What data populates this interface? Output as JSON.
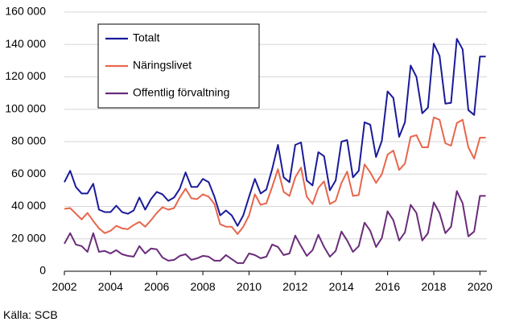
{
  "source": "Källa: SCB",
  "chart_data": {
    "type": "line",
    "title": "",
    "xlabel": "",
    "ylabel": "",
    "xlim": [
      2002,
      2020.3
    ],
    "ylim": [
      0,
      160000
    ],
    "x_ticks": [
      2002,
      2004,
      2006,
      2008,
      2010,
      2012,
      2014,
      2016,
      2018,
      2020
    ],
    "x_tick_labels": [
      "2002",
      "2004",
      "2006",
      "2008",
      "2010",
      "2012",
      "2014",
      "2016",
      "2018",
      "2020"
    ],
    "y_ticks": [
      0,
      20000,
      40000,
      60000,
      80000,
      100000,
      120000,
      140000,
      160000
    ],
    "y_tick_labels": [
      "0",
      "20 000",
      "40 000",
      "60 000",
      "80 000",
      "100 000",
      "120 000",
      "140 000",
      "160 000"
    ],
    "grid": "horizontal",
    "legend_position": "top-left",
    "x": [
      2002.0,
      2002.25,
      2002.5,
      2002.75,
      2003.0,
      2003.25,
      2003.5,
      2003.75,
      2004.0,
      2004.25,
      2004.5,
      2004.75,
      2005.0,
      2005.25,
      2005.5,
      2005.75,
      2006.0,
      2006.25,
      2006.5,
      2006.75,
      2007.0,
      2007.25,
      2007.5,
      2007.75,
      2008.0,
      2008.25,
      2008.5,
      2008.75,
      2009.0,
      2009.25,
      2009.5,
      2009.75,
      2010.0,
      2010.25,
      2010.5,
      2010.75,
      2011.0,
      2011.25,
      2011.5,
      2011.75,
      2012.0,
      2012.25,
      2012.5,
      2012.75,
      2013.0,
      2013.25,
      2013.5,
      2013.75,
      2014.0,
      2014.25,
      2014.5,
      2014.75,
      2015.0,
      2015.25,
      2015.5,
      2015.75,
      2016.0,
      2016.25,
      2016.5,
      2016.75,
      2017.0,
      2017.25,
      2017.5,
      2017.75,
      2018.0,
      2018.25,
      2018.5,
      2018.75,
      2019.0,
      2019.25,
      2019.5,
      2019.75,
      2020.0,
      2020.25
    ],
    "series": [
      {
        "name": "Totalt",
        "color": "#1a1a9a",
        "values": [
          55000,
          62000,
          52000,
          48000,
          48000,
          54000,
          38000,
          36500,
          36500,
          40500,
          36500,
          35500,
          37500,
          45500,
          38000,
          44500,
          49000,
          47500,
          43500,
          45500,
          51000,
          61000,
          52000,
          52000,
          57000,
          55000,
          46000,
          34500,
          37500,
          34500,
          28000,
          34500,
          46000,
          57000,
          48000,
          50500,
          63000,
          78000,
          58000,
          55000,
          78000,
          79500,
          56000,
          53000,
          73500,
          71000,
          50000,
          56000,
          80000,
          81000,
          58000,
          62000,
          92000,
          90500,
          70500,
          80500,
          111000,
          107000,
          83000,
          92000,
          127000,
          120000,
          97500,
          101000,
          140500,
          133000,
          103500,
          104000,
          143500,
          137000,
          99500,
          96500,
          132500,
          132500
        ]
      },
      {
        "name": "Näringslivet",
        "color": "#e8664c",
        "values": [
          38500,
          39000,
          35500,
          32000,
          36000,
          31000,
          26500,
          23500,
          25000,
          28000,
          26500,
          26000,
          28500,
          30500,
          27500,
          31500,
          36000,
          39500,
          38000,
          39000,
          45500,
          51000,
          45000,
          44500,
          47500,
          46000,
          41500,
          29000,
          27500,
          27500,
          23000,
          27500,
          34500,
          47500,
          41000,
          42000,
          52000,
          63000,
          49000,
          46500,
          58000,
          64000,
          46000,
          41500,
          51500,
          55500,
          41500,
          43500,
          54500,
          61500,
          46500,
          47000,
          66000,
          61000,
          54500,
          60000,
          72000,
          74500,
          62500,
          66500,
          83000,
          84000,
          76500,
          76500,
          95000,
          93500,
          79000,
          77500,
          91500,
          93500,
          76500,
          69500,
          82500,
          82500
        ]
      },
      {
        "name": "Offentlig förvaltning",
        "color": "#6a2c7a",
        "values": [
          17000,
          23500,
          16500,
          15500,
          12000,
          23500,
          12000,
          12500,
          11000,
          13000,
          10500,
          9500,
          9000,
          15500,
          11000,
          14000,
          13500,
          8500,
          6500,
          7000,
          9500,
          10500,
          7000,
          8000,
          9500,
          9000,
          6500,
          6500,
          10000,
          7500,
          5000,
          5000,
          11000,
          10000,
          8000,
          9000,
          16500,
          15000,
          10000,
          11000,
          22000,
          15500,
          9500,
          13000,
          22500,
          15000,
          9000,
          12500,
          24500,
          19000,
          12000,
          15500,
          30000,
          25000,
          15000,
          20500,
          37000,
          31500,
          19000,
          24000,
          41000,
          36000,
          19000,
          23500,
          42500,
          36000,
          23500,
          27500,
          49500,
          42000,
          21500,
          24500,
          46500,
          46500
        ]
      }
    ]
  }
}
